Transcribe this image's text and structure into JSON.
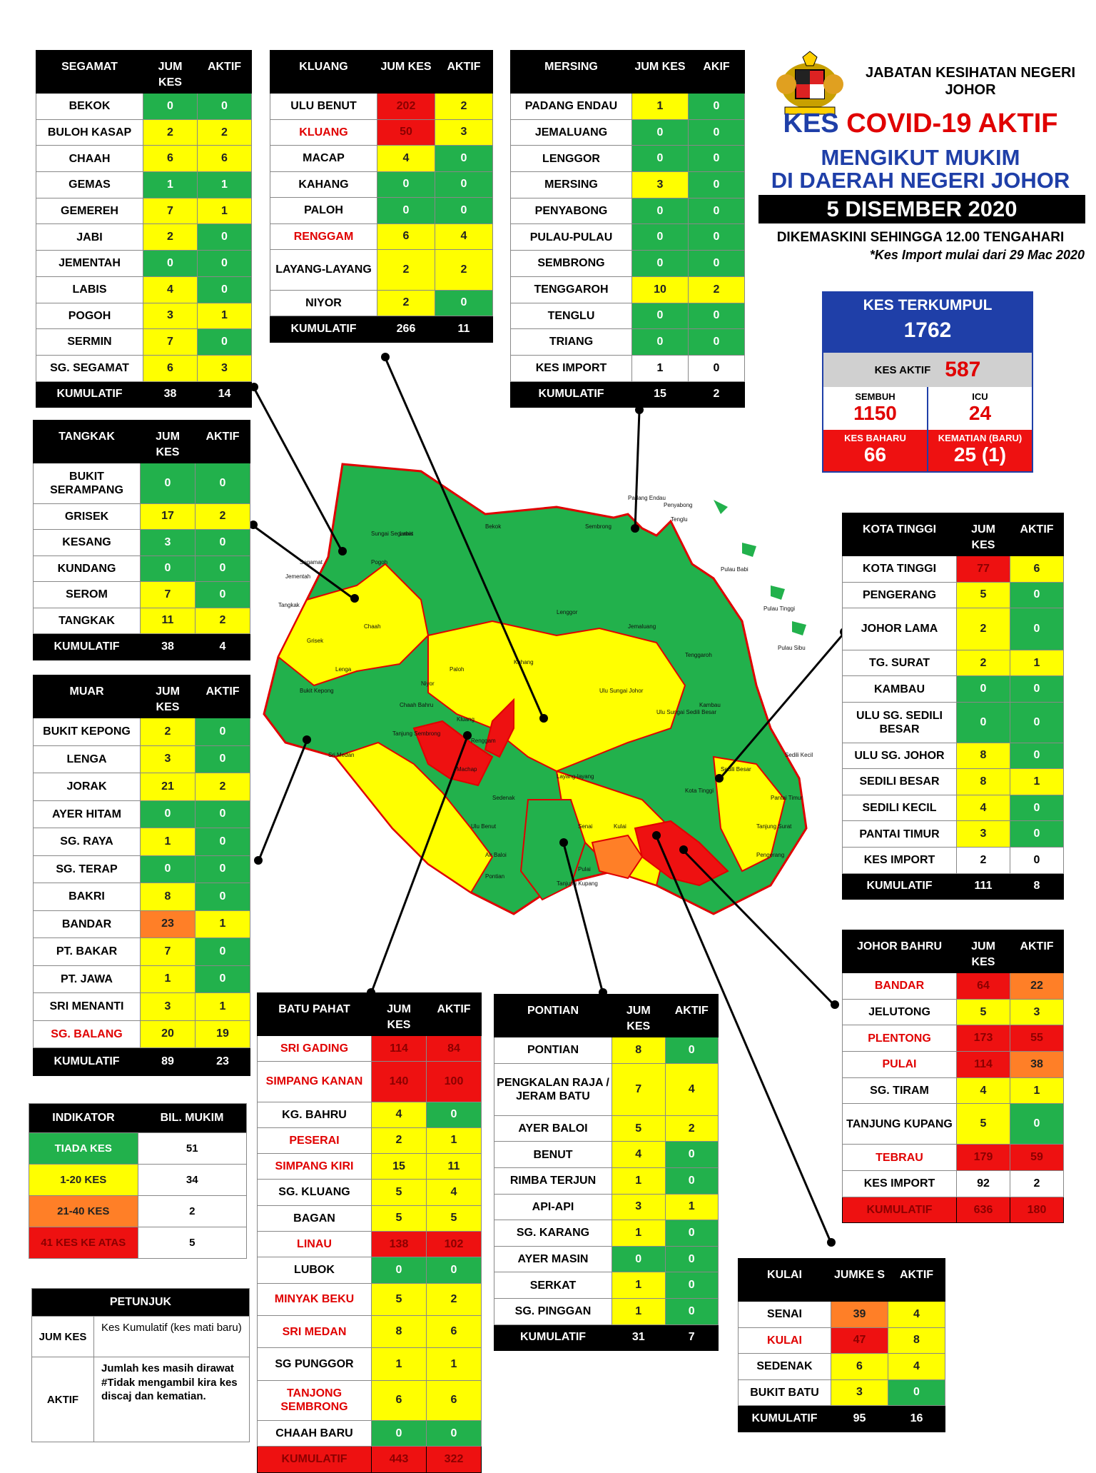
{
  "header": {
    "agency": "JABATAN KESIHATAN NEGERI JOHOR",
    "title_prefix": "KES",
    "title_main": "COVID-19 AKTIF",
    "subtitle_1": "MENGIKUT MUKIM",
    "subtitle_2": "DI DAERAH NEGERI JOHOR",
    "date": "5 DISEMBER 2020",
    "updated": "DIKEMASKINI SEHINGGA 12.00 TENGAHARI",
    "import_note": "*Kes Import mulai dari 29 Mac 2020"
  },
  "summary": {
    "total_label": "KES TERKUMPUL",
    "total": "1762",
    "active_label": "KES AKTIF",
    "active": "587",
    "recovered_label": "SEMBUH",
    "recovered": "1150",
    "icu_label": "ICU",
    "icu": "24",
    "new_label": "KES BAHARU",
    "new": "66",
    "deaths_label": "KEMATIAN (BARU)",
    "deaths": "25 (1)"
  },
  "colors": {
    "green": "#22b14c",
    "yellow": "#ffff00",
    "orange": "#ff7f27",
    "red": "#ee1111",
    "blue": "#1f3fa8"
  },
  "districts": {
    "segamat": {
      "name": "SEGAMAT",
      "h1": "JUM KES",
      "h2": "AKTIF",
      "rows": [
        {
          "n": "BEKOK",
          "j": "0",
          "a": "0",
          "cj": "g",
          "ca": "g"
        },
        {
          "n": "BULOH KASAP",
          "j": "2",
          "a": "2",
          "cj": "y",
          "ca": "y"
        },
        {
          "n": "CHAAH",
          "j": "6",
          "a": "6",
          "cj": "y",
          "ca": "y"
        },
        {
          "n": "GEMAS",
          "j": "1",
          "a": "1",
          "cj": "g",
          "ca": "g"
        },
        {
          "n": "GEMEREH",
          "j": "7",
          "a": "1",
          "cj": "y",
          "ca": "y"
        },
        {
          "n": "JABI",
          "j": "2",
          "a": "0",
          "cj": "y",
          "ca": "g"
        },
        {
          "n": "JEMENTAH",
          "j": "0",
          "a": "0",
          "cj": "g",
          "ca": "g"
        },
        {
          "n": "LABIS",
          "j": "4",
          "a": "0",
          "cj": "y",
          "ca": "g"
        },
        {
          "n": "POGOH",
          "j": "3",
          "a": "1",
          "cj": "y",
          "ca": "y"
        },
        {
          "n": "SERMIN",
          "j": "7",
          "a": "0",
          "cj": "y",
          "ca": "g"
        },
        {
          "n": "SG. SEGAMAT",
          "j": "6",
          "a": "3",
          "cj": "y",
          "ca": "y"
        }
      ],
      "foot": {
        "n": "KUMULATIF",
        "j": "38",
        "a": "14"
      }
    },
    "kluang": {
      "name": "KLUANG",
      "h1": "JUM KES",
      "h2": "AKTIF",
      "rows": [
        {
          "n": "ULU BENUT",
          "j": "202",
          "a": "2",
          "cj": "r",
          "ca": "y"
        },
        {
          "n": "KLUANG",
          "j": "50",
          "a": "3",
          "cj": "r",
          "ca": "y",
          "red": true
        },
        {
          "n": "MACAP",
          "j": "4",
          "a": "0",
          "cj": "y",
          "ca": "g"
        },
        {
          "n": "KAHANG",
          "j": "0",
          "a": "0",
          "cj": "g",
          "ca": "g"
        },
        {
          "n": "PALOH",
          "j": "0",
          "a": "0",
          "cj": "g",
          "ca": "g"
        },
        {
          "n": "RENGGAM",
          "j": "6",
          "a": "4",
          "cj": "y",
          "ca": "y",
          "red": true
        },
        {
          "n": "LAYANG-LAYANG",
          "j": "2",
          "a": "2",
          "cj": "y",
          "ca": "y",
          "tall": true
        },
        {
          "n": "NIYOR",
          "j": "2",
          "a": "0",
          "cj": "y",
          "ca": "g"
        }
      ],
      "foot": {
        "n": "KUMULATIF",
        "j": "266",
        "a": "11"
      }
    },
    "mersing": {
      "name": "MERSING",
      "h1": "JUM KES",
      "h2": "AKIF",
      "rows": [
        {
          "n": "PADANG ENDAU",
          "j": "1",
          "a": "0",
          "cj": "y",
          "ca": "g"
        },
        {
          "n": "JEMALUANG",
          "j": "0",
          "a": "0",
          "cj": "g",
          "ca": "g"
        },
        {
          "n": "LENGGOR",
          "j": "0",
          "a": "0",
          "cj": "g",
          "ca": "g"
        },
        {
          "n": "MERSING",
          "j": "3",
          "a": "0",
          "cj": "y",
          "ca": "g"
        },
        {
          "n": "PENYABONG",
          "j": "0",
          "a": "0",
          "cj": "g",
          "ca": "g"
        },
        {
          "n": "PULAU-PULAU",
          "j": "0",
          "a": "0",
          "cj": "g",
          "ca": "g"
        },
        {
          "n": "SEMBRONG",
          "j": "0",
          "a": "0",
          "cj": "g",
          "ca": "g"
        },
        {
          "n": "TENGGAROH",
          "j": "10",
          "a": "2",
          "cj": "y",
          "ca": "y"
        },
        {
          "n": "TENGLU",
          "j": "0",
          "a": "0",
          "cj": "g",
          "ca": "g"
        },
        {
          "n": "TRIANG",
          "j": "0",
          "a": "0",
          "cj": "g",
          "ca": "g"
        },
        {
          "n": "KES IMPORT",
          "j": "1",
          "a": "0",
          "cj": "bn",
          "ca": "bn"
        }
      ],
      "foot": {
        "n": "KUMULATIF",
        "j": "15",
        "a": "2"
      }
    },
    "tangkak": {
      "name": "TANGKAK",
      "h1": "JUM KES",
      "h2": "AKTIF",
      "rows": [
        {
          "n": "BUKIT SERAMPANG",
          "j": "0",
          "a": "0",
          "cj": "g",
          "ca": "g",
          "tall": true
        },
        {
          "n": "GRISEK",
          "j": "17",
          "a": "2",
          "cj": "y",
          "ca": "y"
        },
        {
          "n": "KESANG",
          "j": "3",
          "a": "0",
          "cj": "g",
          "ca": "g"
        },
        {
          "n": "KUNDANG",
          "j": "0",
          "a": "0",
          "cj": "g",
          "ca": "g"
        },
        {
          "n": "SEROM",
          "j": "7",
          "a": "0",
          "cj": "y",
          "ca": "g"
        },
        {
          "n": "TANGKAK",
          "j": "11",
          "a": "2",
          "cj": "y",
          "ca": "y"
        }
      ],
      "foot": {
        "n": "KUMULATIF",
        "j": "38",
        "a": "4"
      }
    },
    "muar": {
      "name": "MUAR",
      "h1": "JUM KES",
      "h2": "AKTIF",
      "rows": [
        {
          "n": "BUKIT KEPONG",
          "j": "2",
          "a": "0",
          "cj": "y",
          "ca": "g"
        },
        {
          "n": "LENGA",
          "j": "3",
          "a": "0",
          "cj": "y",
          "ca": "g"
        },
        {
          "n": "JORAK",
          "j": "21",
          "a": "2",
          "cj": "y",
          "ca": "y"
        },
        {
          "n": "AYER HITAM",
          "j": "0",
          "a": "0",
          "cj": "g",
          "ca": "g"
        },
        {
          "n": "SG. RAYA",
          "j": "1",
          "a": "0",
          "cj": "y",
          "ca": "g"
        },
        {
          "n": "SG. TERAP",
          "j": "0",
          "a": "0",
          "cj": "g",
          "ca": "g"
        },
        {
          "n": "BAKRI",
          "j": "8",
          "a": "0",
          "cj": "y",
          "ca": "g"
        },
        {
          "n": "BANDAR",
          "j": "23",
          "a": "1",
          "cj": "o",
          "ca": "y"
        },
        {
          "n": "PT. BAKAR",
          "j": "7",
          "a": "0",
          "cj": "y",
          "ca": "g"
        },
        {
          "n": "PT. JAWA",
          "j": "1",
          "a": "0",
          "cj": "y",
          "ca": "g"
        },
        {
          "n": "SRI MENANTI",
          "j": "3",
          "a": "1",
          "cj": "y",
          "ca": "y"
        },
        {
          "n": "SG. BALANG",
          "j": "20",
          "a": "19",
          "cj": "y",
          "ca": "y",
          "red": true
        }
      ],
      "foot": {
        "n": "KUMULATIF",
        "j": "89",
        "a": "23"
      }
    },
    "kotatinggi": {
      "name": "KOTA TINGGI",
      "h1": "JUM KES",
      "h2": "AKTIF",
      "rows": [
        {
          "n": "KOTA TINGGI",
          "j": "77",
          "a": "6",
          "cj": "r",
          "ca": "y"
        },
        {
          "n": "PENGERANG",
          "j": "5",
          "a": "0",
          "cj": "y",
          "ca": "g"
        },
        {
          "n": "JOHOR LAMA",
          "j": "2",
          "a": "0",
          "cj": "y",
          "ca": "g",
          "tall2": true
        },
        {
          "n": "TG. SURAT",
          "j": "2",
          "a": "1",
          "cj": "y",
          "ca": "y"
        },
        {
          "n": "KAMBAU",
          "j": "0",
          "a": "0",
          "cj": "g",
          "ca": "g"
        },
        {
          "n": "ULU SG. SEDILI BESAR",
          "j": "0",
          "a": "0",
          "cj": "g",
          "ca": "g",
          "tall": true
        },
        {
          "n": "ULU SG. JOHOR",
          "j": "8",
          "a": "0",
          "cj": "y",
          "ca": "g"
        },
        {
          "n": "SEDILI BESAR",
          "j": "8",
          "a": "1",
          "cj": "y",
          "ca": "y"
        },
        {
          "n": "SEDILI KECIL",
          "j": "4",
          "a": "0",
          "cj": "y",
          "ca": "g"
        },
        {
          "n": "PANTAI TIMUR",
          "j": "3",
          "a": "0",
          "cj": "y",
          "ca": "g"
        },
        {
          "n": "KES IMPORT",
          "j": "2",
          "a": "0",
          "cj": "bn",
          "ca": "bn"
        }
      ],
      "foot": {
        "n": "KUMULATIF",
        "j": "111",
        "a": "8"
      }
    },
    "johorbahru": {
      "name": "JOHOR BAHRU",
      "h1": "JUM KES",
      "h2": "AKTIF",
      "rows": [
        {
          "n": "BANDAR",
          "j": "64",
          "a": "22",
          "cj": "r",
          "ca": "o",
          "red": true
        },
        {
          "n": "JELUTONG",
          "j": "5",
          "a": "3",
          "cj": "y",
          "ca": "y"
        },
        {
          "n": "PLENTONG",
          "j": "173",
          "a": "55",
          "cj": "r",
          "ca": "r",
          "red": true
        },
        {
          "n": "PULAI",
          "j": "114",
          "a": "38",
          "cj": "r",
          "ca": "o",
          "red": true
        },
        {
          "n": "SG. TIRAM",
          "j": "4",
          "a": "1",
          "cj": "y",
          "ca": "y"
        },
        {
          "n": "TANJUNG KUPANG",
          "j": "5",
          "a": "0",
          "cj": "y",
          "ca": "g",
          "tall": true
        },
        {
          "n": "TEBRAU",
          "j": "179",
          "a": "59",
          "cj": "r",
          "ca": "r",
          "red": true
        },
        {
          "n": "KES IMPORT",
          "j": "92",
          "a": "2",
          "cj": "bn",
          "ca": "bn"
        }
      ],
      "foot": {
        "n": "KUMULATIF",
        "j": "636",
        "a": "180",
        "redfoot": true
      }
    },
    "batupahat": {
      "name": "BATU PAHAT",
      "h1": "JUM KES",
      "h2": "AKTIF",
      "rows": [
        {
          "n": "SRI GADING",
          "j": "114",
          "a": "84",
          "cj": "r",
          "ca": "r",
          "red": true
        },
        {
          "n": "SIMPANG KANAN",
          "j": "140",
          "a": "100",
          "cj": "r",
          "ca": "r",
          "red": true,
          "tall": true
        },
        {
          "n": "KG. BAHRU",
          "j": "4",
          "a": "0",
          "cj": "y",
          "ca": "g"
        },
        {
          "n": "PESERAI",
          "j": "2",
          "a": "1",
          "cj": "y",
          "ca": "y",
          "red": true
        },
        {
          "n": "SIMPANG KIRI",
          "j": "15",
          "a": "11",
          "cj": "y",
          "ca": "y",
          "red": true
        },
        {
          "n": "SG. KLUANG",
          "j": "5",
          "a": "4",
          "cj": "y",
          "ca": "y"
        },
        {
          "n": "BAGAN",
          "j": "5",
          "a": "5",
          "cj": "y",
          "ca": "y"
        },
        {
          "n": "LINAU",
          "j": "138",
          "a": "102",
          "cj": "r",
          "ca": "r",
          "red": true
        },
        {
          "n": "LUBOK",
          "j": "0",
          "a": "0",
          "cj": "g",
          "ca": "g"
        },
        {
          "n": "MINYAK BEKU",
          "j": "5",
          "a": "2",
          "cj": "y",
          "ca": "y",
          "red": true,
          "tall3": true
        },
        {
          "n": "SRI MEDAN",
          "j": "8",
          "a": "6",
          "cj": "y",
          "ca": "y",
          "red": true,
          "tall3": true
        },
        {
          "n": "SG PUNGGOR",
          "j": "1",
          "a": "1",
          "cj": "y",
          "ca": "y",
          "tall3": true
        },
        {
          "n": "TANJONG SEMBRONG",
          "j": "6",
          "a": "6",
          "cj": "y",
          "ca": "y",
          "red": true,
          "tall": true
        },
        {
          "n": "CHAAH BARU",
          "j": "0",
          "a": "0",
          "cj": "g",
          "ca": "g"
        }
      ],
      "foot": {
        "n": "KUMULATIF",
        "j": "443",
        "a": "322",
        "redfoot": true
      }
    },
    "pontian": {
      "name": "PONTIAN",
      "h1": "JUM KES",
      "h2": "AKTIF",
      "rows": [
        {
          "n": "PONTIAN",
          "j": "8",
          "a": "0",
          "cj": "y",
          "ca": "g"
        },
        {
          "n": "PENGKALAN RAJA / JERAM BATU",
          "j": "7",
          "a": "4",
          "cj": "y",
          "ca": "y",
          "tall4": true
        },
        {
          "n": "AYER BALOI",
          "j": "5",
          "a": "2",
          "cj": "y",
          "ca": "y"
        },
        {
          "n": "BENUT",
          "j": "4",
          "a": "0",
          "cj": "y",
          "ca": "g"
        },
        {
          "n": "RIMBA TERJUN",
          "j": "1",
          "a": "0",
          "cj": "y",
          "ca": "g"
        },
        {
          "n": "API-API",
          "j": "3",
          "a": "1",
          "cj": "y",
          "ca": "y"
        },
        {
          "n": "SG. KARANG",
          "j": "1",
          "a": "0",
          "cj": "y",
          "ca": "g"
        },
        {
          "n": "AYER MASIN",
          "j": "0",
          "a": "0",
          "cj": "g",
          "ca": "g"
        },
        {
          "n": "SERKAT",
          "j": "1",
          "a": "0",
          "cj": "y",
          "ca": "g"
        },
        {
          "n": "SG. PINGGAN",
          "j": "1",
          "a": "0",
          "cj": "y",
          "ca": "g"
        }
      ],
      "foot": {
        "n": "KUMULATIF",
        "j": "31",
        "a": "7"
      }
    },
    "kulai": {
      "name": "KULAI",
      "h1": "JUMKE S",
      "h2": "AKTIF",
      "rows": [
        {
          "n": "SENAI",
          "j": "39",
          "a": "4",
          "cj": "o",
          "ca": "y"
        },
        {
          "n": "KULAI",
          "j": "47",
          "a": "8",
          "cj": "r",
          "ca": "y",
          "red": true
        },
        {
          "n": "SEDENAK",
          "j": "6",
          "a": "4",
          "cj": "y",
          "ca": "y"
        },
        {
          "n": "BUKIT BATU",
          "j": "3",
          "a": "0",
          "cj": "y",
          "ca": "g"
        }
      ],
      "foot": {
        "n": "KUMULATIF",
        "j": "95",
        "a": "16"
      }
    }
  },
  "indicator": {
    "h1": "INDIKATOR",
    "h2": "BIL. MUKIM",
    "rows": [
      {
        "label": "TIADA KES",
        "value": "51",
        "c": "g"
      },
      {
        "label": "1-20 KES",
        "value": "34",
        "c": "y"
      },
      {
        "label": "21-40 KES",
        "value": "2",
        "c": "o"
      },
      {
        "label": "41 KES KE ATAS",
        "value": "5",
        "c": "r"
      }
    ]
  },
  "legend": {
    "title": "PETUNJUK",
    "rows": [
      {
        "k": "JUM KES",
        "v": "Kes Kumulatif (kes mati baru)"
      },
      {
        "k": "AKTIF",
        "v": "Jumlah kes masih dirawat #Tidak mengambil kira kes discaj dan kematian."
      }
    ]
  },
  "map_labels": [
    "Segamat",
    "Jementah",
    "Sungai Segamat",
    "Pogoh",
    "Labis",
    "Bekok",
    "Sembrong",
    "Padang Endau",
    "Penyabong",
    "Tenglu",
    "Pulau Babi",
    "Pulau Tinggi",
    "Pulau Sibu",
    "Tangkak",
    "Grisek",
    "Bukit Kepong",
    "Lenga",
    "Chaah",
    "Paloh",
    "Niyor",
    "Kahang",
    "Lenggor",
    "Jemaluang",
    "Tenggaroh",
    "Kluang",
    "Renggam",
    "Sri Medan",
    "Tanjung Sembrong",
    "Chaah Bahru",
    "Ulu Sungai Johor",
    "Ulu Sungai Sedili Besar",
    "Kambau",
    "Sedili Besar",
    "Kota Tinggi",
    "Layang-layang",
    "Sedenak",
    "Senai",
    "Kulai",
    "Ulu Benut",
    "Air Baloi",
    "Pontian",
    "Pulai",
    "Tanjung Kupang",
    "Tanjung Surat",
    "Pantai Timur",
    "Pengerang",
    "Machap",
    "Sedili Kecil"
  ]
}
